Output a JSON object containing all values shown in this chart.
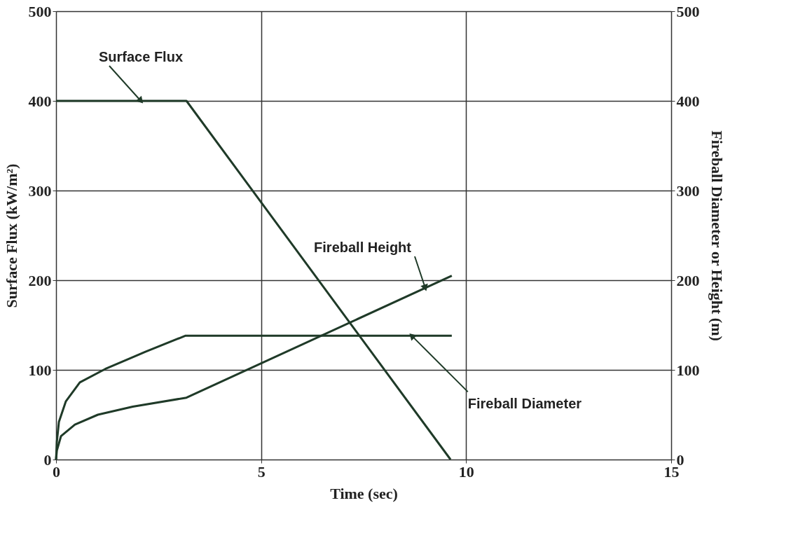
{
  "chart_data": {
    "type": "line",
    "xlabel": "Time (sec)",
    "ylabel": "Surface Flux (kW/m²)",
    "y2label": "Fireball Diameter or Height (m)",
    "xlim": [
      0,
      15
    ],
    "xticks": [
      0,
      5,
      10,
      15
    ],
    "ylim": [
      0,
      500
    ],
    "yticks": [
      0,
      100,
      200,
      300,
      400,
      500
    ],
    "y2lim": [
      0,
      500
    ],
    "y2ticks": [
      0,
      100,
      200,
      300,
      400,
      500
    ],
    "grid": true,
    "line_style": "solid",
    "marker": "none",
    "series": [
      {
        "name": "Surface Flux",
        "color": "#1f3a28",
        "x": [
          0,
          3.18,
          9.62
        ],
        "values": [
          400,
          400,
          0
        ]
      },
      {
        "name": "Fireball Height",
        "color": "#1f3a28",
        "axis": "y2",
        "x": [
          0,
          0.02,
          0.12,
          0.46,
          1.02,
          1.87,
          3.18,
          9.65
        ],
        "values": [
          0,
          10,
          26,
          39,
          50,
          59,
          69,
          205
        ]
      },
      {
        "name": "Fireball Diameter",
        "color": "#1f3a28",
        "axis": "y2",
        "x": [
          0,
          0.02,
          0.07,
          0.24,
          0.58,
          1.2,
          2.17,
          3.15,
          9.65
        ],
        "values": [
          0,
          20,
          42,
          65,
          86,
          101,
          120,
          138,
          138
        ]
      }
    ]
  }
}
